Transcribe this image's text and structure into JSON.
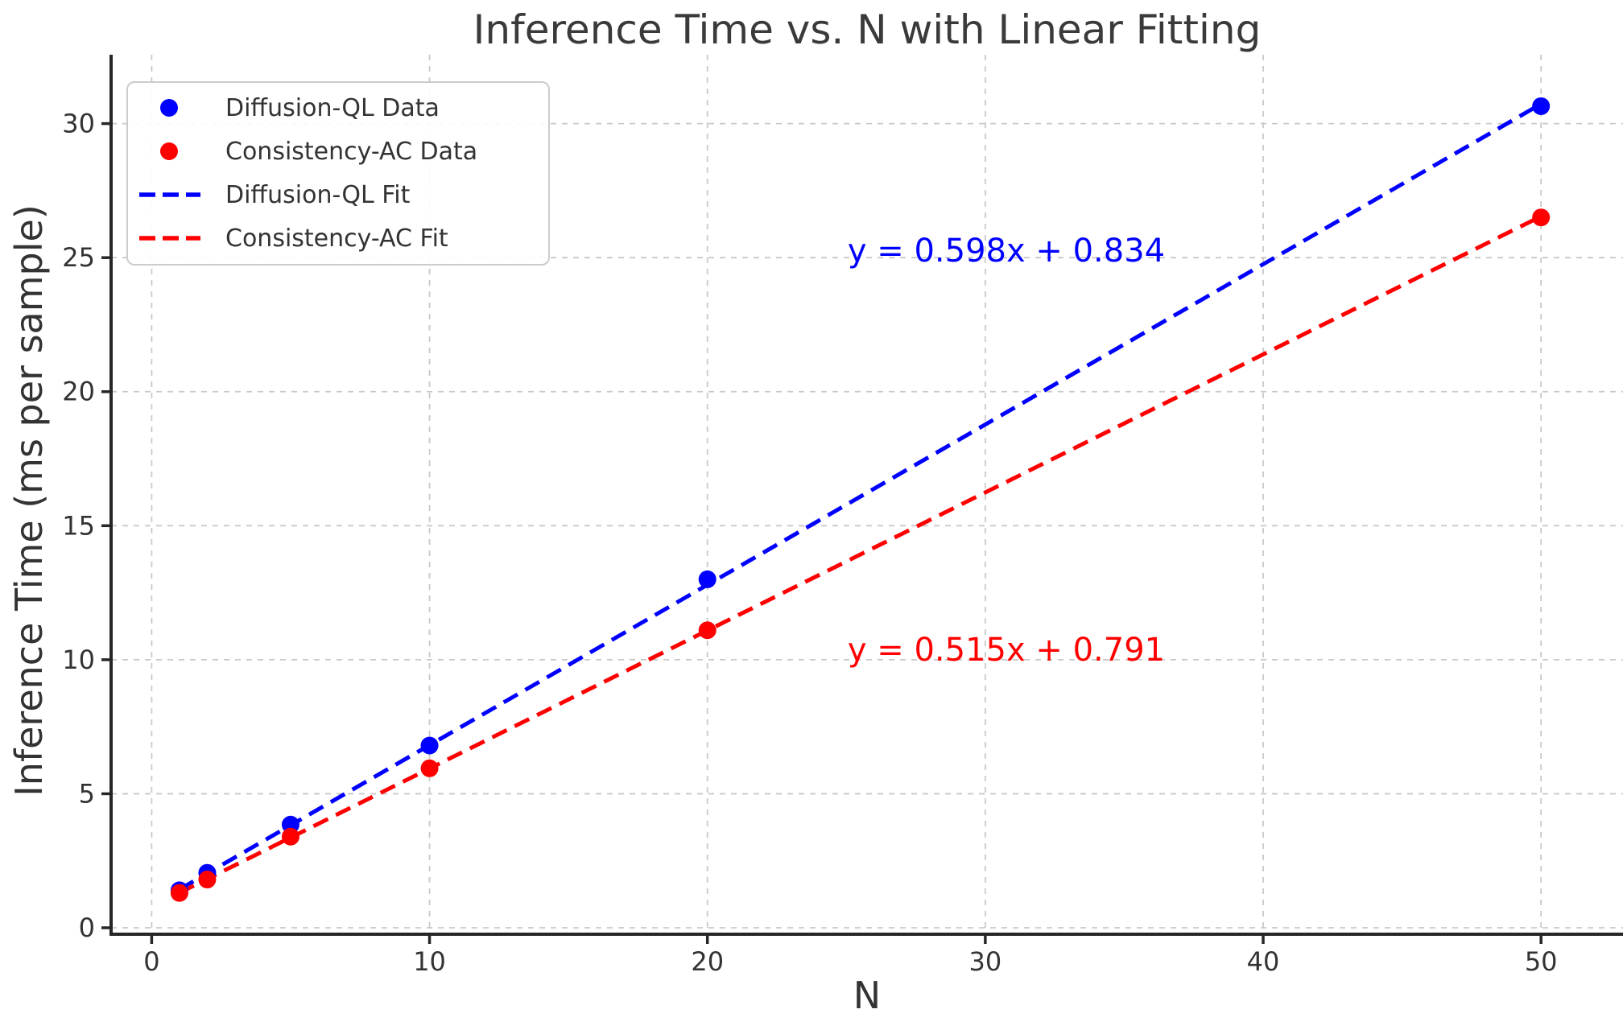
{
  "chart_data": {
    "type": "scatter",
    "title": "Inference Time vs. N with Linear Fitting",
    "xlabel": "N",
    "ylabel": "Inference Time (ms per sample)",
    "x": [
      1,
      2,
      5,
      10,
      20,
      50
    ],
    "series": [
      {
        "name": "Diffusion-QL Data",
        "color": "#0000ff",
        "marker": "circle",
        "values": [
          1.4,
          2.05,
          3.85,
          6.8,
          13.0,
          30.65
        ]
      },
      {
        "name": "Consistency-AC Data",
        "color": "#ff0000",
        "marker": "circle",
        "values": [
          1.3,
          1.8,
          3.4,
          5.95,
          11.1,
          26.5
        ]
      }
    ],
    "fits": [
      {
        "name": "Diffusion-QL Fit",
        "color": "#0000ff",
        "slope": 0.598,
        "intercept": 0.834,
        "x_start": 1,
        "x_end": 50,
        "equation": "y = 0.598x + 0.834"
      },
      {
        "name": "Consistency-AC Fit",
        "color": "#ff0000",
        "slope": 0.515,
        "intercept": 0.791,
        "x_start": 1,
        "x_end": 50,
        "equation": "y = 0.515x + 0.791"
      }
    ],
    "legend_entries": [
      {
        "label": "Diffusion-QL Data",
        "marker": "dot",
        "color": "#0000ff"
      },
      {
        "label": "Consistency-AC Data",
        "marker": "dot",
        "color": "#ff0000"
      },
      {
        "label": "Diffusion-QL Fit",
        "marker": "dash",
        "color": "#0000ff"
      },
      {
        "label": "Consistency-AC Fit",
        "marker": "dash",
        "color": "#ff0000"
      }
    ],
    "legend_position": "upper left",
    "x_ticks": [
      0,
      10,
      20,
      30,
      40,
      50
    ],
    "y_ticks": [
      0,
      5,
      10,
      15,
      20,
      25,
      30
    ],
    "xlim": [
      -1.46,
      52.95
    ],
    "ylim": [
      -0.24,
      32.57
    ],
    "grid": true,
    "styles": {
      "grid_color": "#c9c9c9",
      "spine_color": "#262626",
      "title_color": "#3a3a3a",
      "tick_label_color": "#333333",
      "legend_text_color": "#333333",
      "legend_border_color": "#cccccc",
      "background": "#ffffff"
    }
  }
}
